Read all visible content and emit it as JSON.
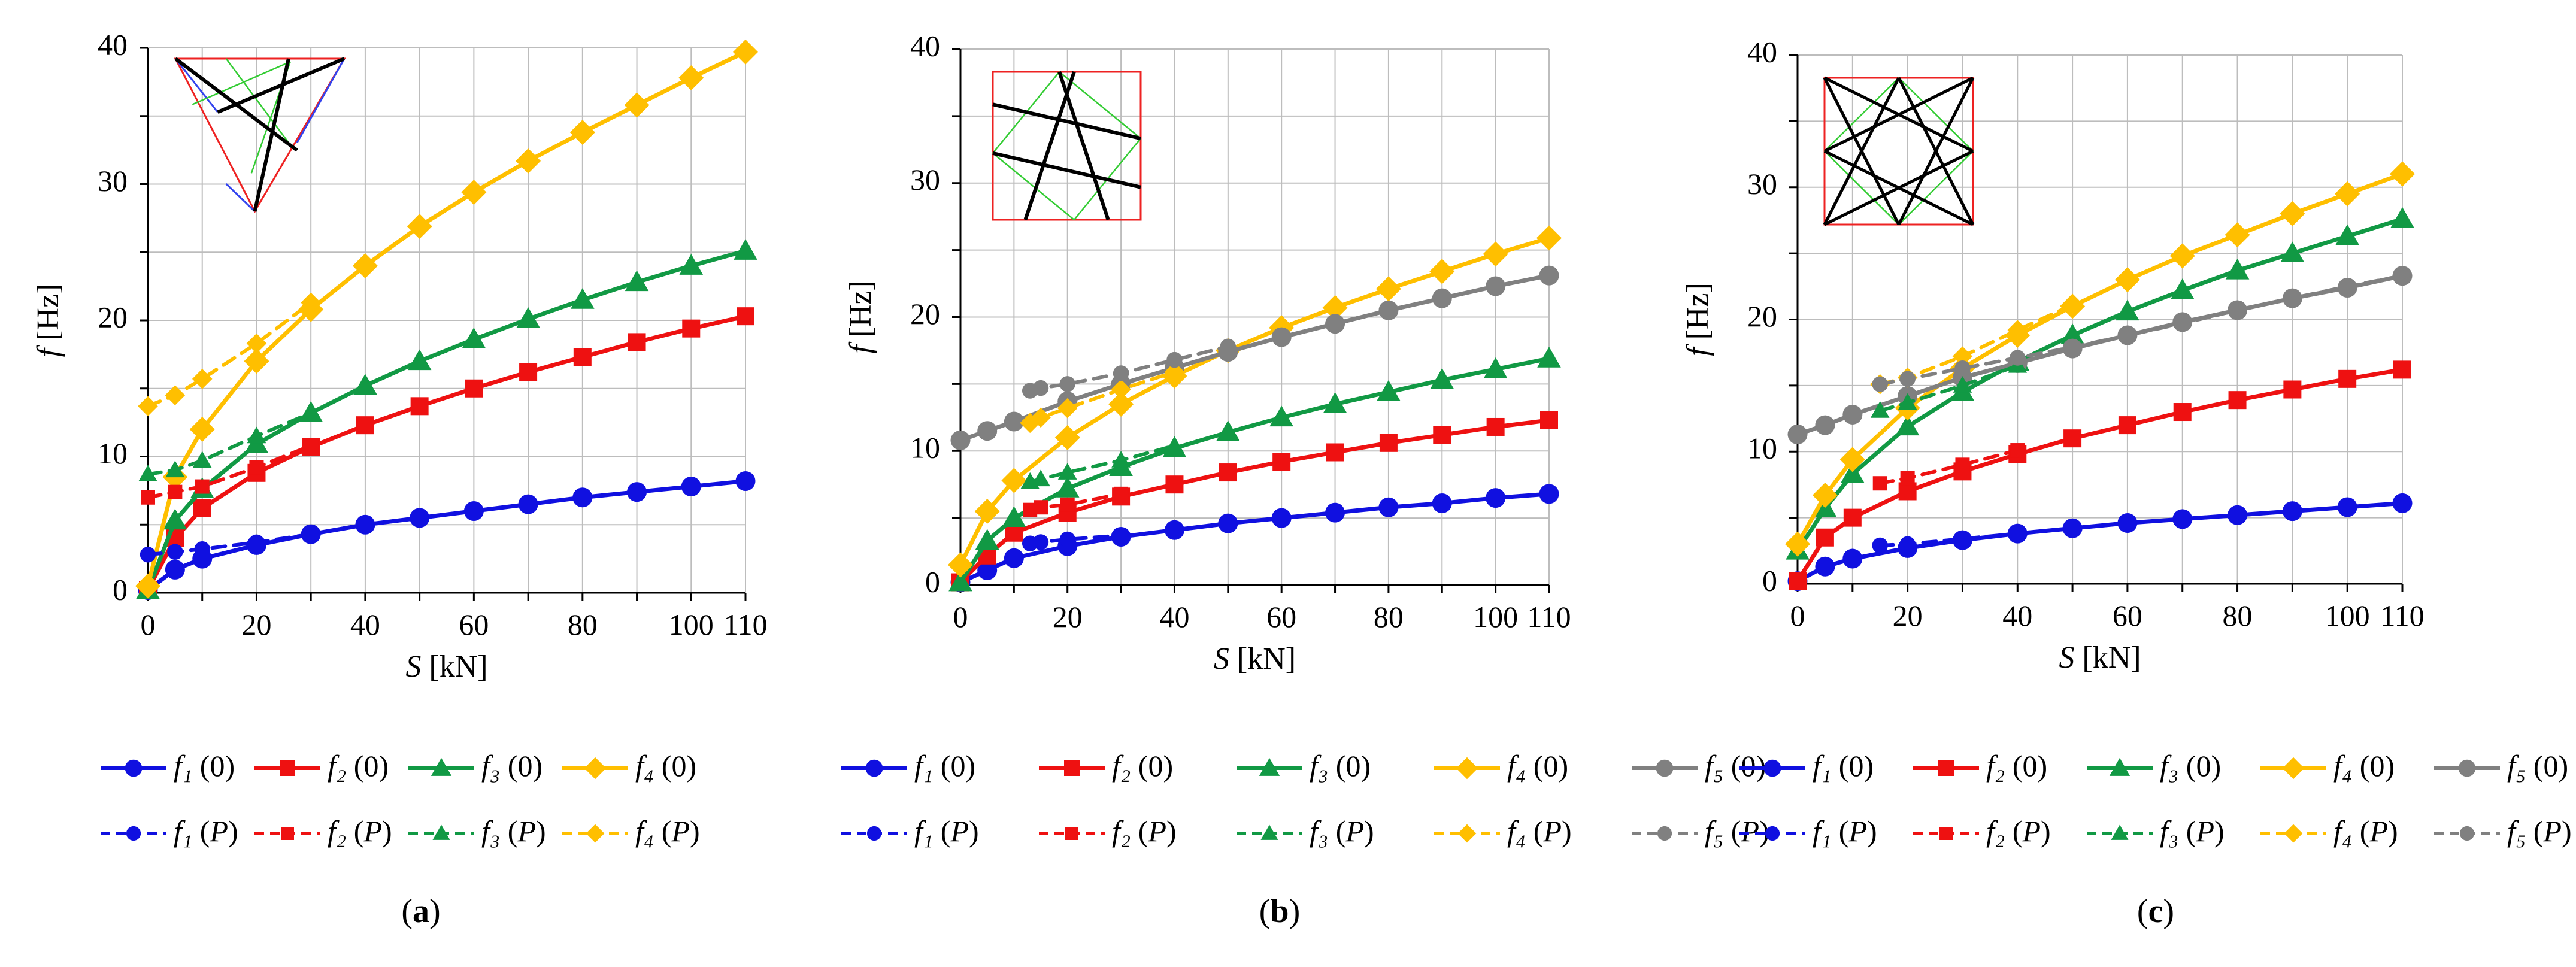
{
  "figure": {
    "panels": [
      {
        "label": "(a)",
        "inset": "triangle",
        "chart_data": {
          "type": "line",
          "xlabel": "S [kN]",
          "ylabel": "f [Hz]",
          "xlim": [
            0,
            110
          ],
          "ylim": [
            0,
            40
          ],
          "xticks": [
            0,
            20,
            40,
            60,
            80,
            100,
            110
          ],
          "yticks": [
            0,
            10,
            20,
            30,
            40
          ],
          "grid": true,
          "legend_position": "below",
          "series": [
            {
              "name": "f₁ (0)",
              "color": "#1010e0",
              "style": "solid",
              "marker": "circle",
              "x": [
                0,
                5,
                10,
                20,
                30,
                40,
                50,
                60,
                70,
                80,
                90,
                100,
                110
              ],
              "y": [
                0.2,
                1.7,
                2.5,
                3.5,
                4.3,
                5.0,
                5.5,
                6.0,
                6.5,
                7.0,
                7.4,
                7.8,
                8.2
              ]
            },
            {
              "name": "f₂ (0)",
              "color": "#ee1111",
              "style": "solid",
              "marker": "square",
              "x": [
                0,
                5,
                10,
                20,
                30,
                40,
                50,
                60,
                70,
                80,
                90,
                100,
                110
              ],
              "y": [
                0.2,
                4.0,
                6.2,
                8.8,
                10.7,
                12.3,
                13.7,
                15.0,
                16.2,
                17.3,
                18.4,
                19.4,
                20.3
              ]
            },
            {
              "name": "f₃ (0)",
              "color": "#119944",
              "style": "solid",
              "marker": "triangle",
              "x": [
                0,
                5,
                10,
                20,
                30,
                40,
                50,
                60,
                70,
                80,
                90,
                100,
                110
              ],
              "y": [
                0.2,
                5.3,
                7.6,
                10.9,
                13.2,
                15.2,
                17.0,
                18.6,
                20.1,
                21.5,
                22.8,
                24.0,
                25.1
              ]
            },
            {
              "name": "f₄ (0)",
              "color": "#ffbf00",
              "style": "solid",
              "marker": "diamond",
              "x": [
                0,
                5,
                10,
                20,
                30,
                40,
                50,
                60,
                70,
                80,
                90,
                100,
                110
              ],
              "y": [
                0.5,
                8.5,
                12.0,
                17.0,
                20.8,
                24.0,
                26.9,
                29.4,
                31.7,
                33.8,
                35.8,
                37.8,
                39.7
              ]
            },
            {
              "name": "f₁ (P)",
              "color": "#1010e0",
              "style": "dashed",
              "marker": "circle",
              "x": [
                0,
                5,
                10,
                20,
                30
              ],
              "y": [
                2.8,
                3.0,
                3.2,
                3.7,
                4.3
              ]
            },
            {
              "name": "f₂ (P)",
              "color": "#ee1111",
              "style": "dashed",
              "marker": "square",
              "x": [
                0,
                5,
                10,
                20,
                30
              ],
              "y": [
                7.0,
                7.4,
                7.8,
                9.2,
                10.8
              ]
            },
            {
              "name": "f₃ (P)",
              "color": "#119944",
              "style": "dashed",
              "marker": "triangle",
              "x": [
                0,
                5,
                10,
                20,
                30
              ],
              "y": [
                8.7,
                9.0,
                9.7,
                11.5,
                13.2
              ]
            },
            {
              "name": "f₄ (P)",
              "color": "#ffbf00",
              "style": "dashed",
              "marker": "diamond",
              "x": [
                0,
                5,
                10,
                20,
                30
              ],
              "y": [
                13.7,
                14.5,
                15.7,
                18.3,
                21.3
              ]
            }
          ]
        }
      },
      {
        "label": "(b)",
        "inset": "square",
        "chart_data": {
          "type": "line",
          "xlabel": "S [kN]",
          "ylabel": "f [Hz]",
          "xlim": [
            0,
            110
          ],
          "ylim": [
            0,
            40
          ],
          "xticks": [
            0,
            20,
            40,
            60,
            80,
            100,
            110
          ],
          "yticks": [
            0,
            10,
            20,
            30,
            40
          ],
          "grid": true,
          "legend_position": "below",
          "series": [
            {
              "name": "f₁ (0)",
              "color": "#1010e0",
              "style": "solid",
              "marker": "circle",
              "x": [
                0,
                5,
                10,
                20,
                30,
                40,
                50,
                60,
                70,
                80,
                90,
                100,
                110
              ],
              "y": [
                0.2,
                1.1,
                2.0,
                2.9,
                3.6,
                4.1,
                4.6,
                5.0,
                5.4,
                5.8,
                6.1,
                6.5,
                6.8
              ]
            },
            {
              "name": "f₂ (0)",
              "color": "#ee1111",
              "style": "solid",
              "marker": "square",
              "x": [
                0,
                5,
                10,
                20,
                30,
                40,
                50,
                60,
                70,
                80,
                90,
                100,
                110
              ],
              "y": [
                0.2,
                2.2,
                3.9,
                5.4,
                6.6,
                7.5,
                8.4,
                9.2,
                9.9,
                10.6,
                11.2,
                11.8,
                12.3
              ]
            },
            {
              "name": "f₃ (0)",
              "color": "#119944",
              "style": "solid",
              "marker": "triangle",
              "x": [
                0,
                5,
                10,
                20,
                30,
                40,
                50,
                60,
                70,
                80,
                90,
                100,
                110
              ],
              "y": [
                0.2,
                3.3,
                5.0,
                7.2,
                8.8,
                10.2,
                11.4,
                12.5,
                13.5,
                14.4,
                15.3,
                16.1,
                16.9
              ]
            },
            {
              "name": "f₄ (0)",
              "color": "#ffbf00",
              "style": "solid",
              "marker": "diamond",
              "x": [
                0,
                5,
                10,
                20,
                30,
                40,
                50,
                60,
                70,
                80,
                90,
                100,
                110
              ],
              "y": [
                1.5,
                5.5,
                7.8,
                11.0,
                13.5,
                15.6,
                17.5,
                19.2,
                20.7,
                22.1,
                23.4,
                24.7,
                25.9
              ]
            },
            {
              "name": "f₅ (0)",
              "color": "#808080",
              "style": "solid",
              "marker": "circle",
              "x": [
                0,
                5,
                10,
                20,
                30,
                40,
                50,
                60,
                70,
                80,
                90,
                100,
                110
              ],
              "y": [
                10.8,
                11.5,
                12.2,
                13.7,
                15.0,
                16.2,
                17.4,
                18.5,
                19.5,
                20.5,
                21.4,
                22.3,
                23.1
              ]
            },
            {
              "name": "f₁ (P)",
              "color": "#1010e0",
              "style": "dashed",
              "marker": "circle",
              "x": [
                13,
                15,
                20,
                30
              ],
              "y": [
                3.1,
                3.2,
                3.4,
                3.7
              ]
            },
            {
              "name": "f₂ (P)",
              "color": "#ee1111",
              "style": "dashed",
              "marker": "square",
              "x": [
                13,
                15,
                20,
                30
              ],
              "y": [
                5.6,
                5.8,
                6.0,
                6.8
              ]
            },
            {
              "name": "f₃ (P)",
              "color": "#119944",
              "style": "dashed",
              "marker": "triangle",
              "x": [
                13,
                15,
                20,
                30,
                40
              ],
              "y": [
                7.7,
                7.9,
                8.4,
                9.3,
                10.4
              ]
            },
            {
              "name": "f₄ (P)",
              "color": "#ffbf00",
              "style": "dashed",
              "marker": "diamond",
              "x": [
                13,
                15,
                20,
                30,
                40
              ],
              "y": [
                12.1,
                12.5,
                13.2,
                14.6,
                15.9
              ]
            },
            {
              "name": "f₅ (P)",
              "color": "#808080",
              "style": "dashed",
              "marker": "circle",
              "x": [
                13,
                15,
                20,
                30,
                40,
                50
              ],
              "y": [
                14.5,
                14.7,
                15.0,
                15.8,
                16.8,
                17.8
              ]
            }
          ]
        }
      },
      {
        "label": "(c)",
        "inset": "star",
        "chart_data": {
          "type": "line",
          "xlabel": "S [kN]",
          "ylabel": "f [Hz]",
          "xlim": [
            0,
            110
          ],
          "ylim": [
            0,
            40
          ],
          "xticks": [
            0,
            20,
            40,
            60,
            80,
            100,
            110
          ],
          "yticks": [
            0,
            10,
            20,
            30,
            40
          ],
          "grid": true,
          "legend_position": "below",
          "series": [
            {
              "name": "f₁ (0)",
              "color": "#1010e0",
              "style": "solid",
              "marker": "circle",
              "x": [
                0,
                5,
                10,
                20,
                30,
                40,
                50,
                60,
                70,
                80,
                90,
                100,
                110
              ],
              "y": [
                0.2,
                1.3,
                1.9,
                2.7,
                3.3,
                3.8,
                4.2,
                4.6,
                4.9,
                5.2,
                5.5,
                5.8,
                6.1
              ]
            },
            {
              "name": "f₂ (0)",
              "color": "#ee1111",
              "style": "solid",
              "marker": "square",
              "x": [
                0,
                5,
                10,
                20,
                30,
                40,
                50,
                60,
                70,
                80,
                90,
                100,
                110
              ],
              "y": [
                0.2,
                3.5,
                5.0,
                7.0,
                8.5,
                9.8,
                11.0,
                12.0,
                13.0,
                13.9,
                14.7,
                15.5,
                16.2
              ]
            },
            {
              "name": "f₃ (0)",
              "color": "#119944",
              "style": "solid",
              "marker": "triangle",
              "x": [
                0,
                5,
                10,
                20,
                30,
                40,
                50,
                60,
                70,
                80,
                90,
                100,
                110
              ],
              "y": [
                2.5,
                5.7,
                8.3,
                11.9,
                14.5,
                16.8,
                18.8,
                20.6,
                22.2,
                23.7,
                25.0,
                26.3,
                27.6
              ]
            },
            {
              "name": "f₄ (0)",
              "color": "#ffbf00",
              "style": "solid",
              "marker": "diamond",
              "x": [
                0,
                5,
                10,
                20,
                30,
                40,
                50,
                60,
                70,
                80,
                90,
                100,
                110
              ],
              "y": [
                3.0,
                6.7,
                9.4,
                13.3,
                16.3,
                18.8,
                21.0,
                23.0,
                24.8,
                26.4,
                28.0,
                29.5,
                31.0
              ]
            },
            {
              "name": "f₅ (0)",
              "color": "#808080",
              "style": "solid",
              "marker": "circle",
              "x": [
                0,
                5,
                10,
                20,
                30,
                40,
                50,
                60,
                70,
                80,
                90,
                100,
                110
              ],
              "y": [
                11.3,
                12.0,
                12.8,
                14.2,
                15.6,
                16.7,
                17.8,
                18.8,
                19.8,
                20.7,
                21.6,
                22.4,
                23.3
              ]
            },
            {
              "name": "f₁ (P)",
              "color": "#1010e0",
              "style": "dashed",
              "marker": "circle",
              "x": [
                15,
                20,
                30,
                40
              ],
              "y": [
                2.9,
                3.0,
                3.4,
                3.8
              ]
            },
            {
              "name": "f₂ (P)",
              "color": "#ee1111",
              "style": "dashed",
              "marker": "square",
              "x": [
                15,
                20,
                30,
                40
              ],
              "y": [
                7.6,
                8.0,
                9.0,
                10.1
              ]
            },
            {
              "name": "f₃ (P)",
              "color": "#119944",
              "style": "dashed",
              "marker": "triangle",
              "x": [
                15,
                20,
                30,
                40
              ],
              "y": [
                13.1,
                13.7,
                15.0,
                16.5
              ]
            },
            {
              "name": "f₄ (P)",
              "color": "#ffbf00",
              "style": "dashed",
              "marker": "diamond",
              "x": [
                15,
                20,
                30,
                40,
                50
              ],
              "y": [
                15.1,
                15.6,
                17.2,
                19.2,
                21.1
              ]
            },
            {
              "name": "f₅ (P)",
              "color": "#808080",
              "style": "dashed",
              "marker": "circle",
              "x": [
                15,
                20,
                30,
                40,
                50,
                60,
                70,
                80,
                90,
                100,
                110
              ],
              "y": [
                15.1,
                15.5,
                16.3,
                17.1,
                17.9,
                18.8,
                19.7,
                20.7,
                21.6,
                22.5,
                23.3
              ]
            }
          ]
        }
      }
    ]
  }
}
